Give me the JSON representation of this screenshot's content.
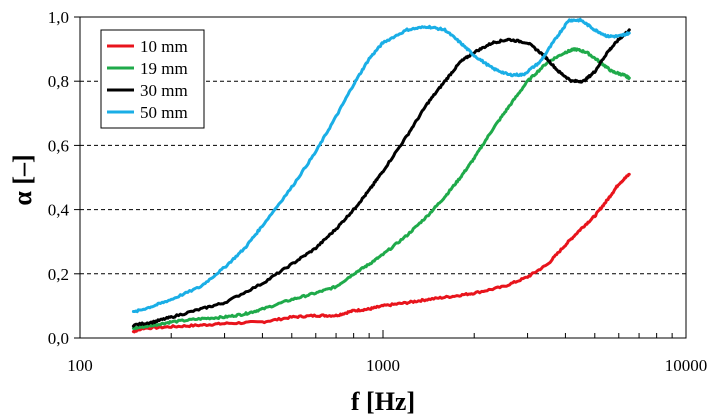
{
  "chart_data": {
    "type": "line",
    "title": "",
    "xlabel": "f [Hz]",
    "ylabel": "α [–]",
    "xscale": "log",
    "xlim": [
      100,
      10000
    ],
    "ylim": [
      0.0,
      1.0
    ],
    "x_ticks": [
      100,
      1000,
      10000
    ],
    "x_tick_labels": [
      "100",
      "1000",
      "10000"
    ],
    "y_ticks": [
      0.0,
      0.2,
      0.4,
      0.6,
      0.8,
      1.0
    ],
    "y_tick_labels": [
      "0,0",
      "0,2",
      "0,4",
      "0,6",
      "0,8",
      "1,0"
    ],
    "grid": "horizontal dashed",
    "legend_position": "top-left",
    "series": [
      {
        "name": "10 mm",
        "color": "#e8141c",
        "points": [
          [
            150,
            0.02
          ],
          [
            160,
            0.03
          ],
          [
            200,
            0.035
          ],
          [
            250,
            0.04
          ],
          [
            300,
            0.045
          ],
          [
            400,
            0.05
          ],
          [
            500,
            0.065
          ],
          [
            600,
            0.07
          ],
          [
            700,
            0.07
          ],
          [
            800,
            0.085
          ],
          [
            900,
            0.09
          ],
          [
            1000,
            0.1
          ],
          [
            1200,
            0.11
          ],
          [
            1400,
            0.12
          ],
          [
            1700,
            0.13
          ],
          [
            2000,
            0.14
          ],
          [
            2500,
            0.16
          ],
          [
            3000,
            0.19
          ],
          [
            3500,
            0.23
          ],
          [
            4000,
            0.29
          ],
          [
            4500,
            0.34
          ],
          [
            5000,
            0.38
          ],
          [
            5500,
            0.43
          ],
          [
            6000,
            0.48
          ],
          [
            6500,
            0.51
          ]
        ]
      },
      {
        "name": "19 mm",
        "color": "#1faa4a",
        "points": [
          [
            150,
            0.03
          ],
          [
            175,
            0.04
          ],
          [
            200,
            0.05
          ],
          [
            250,
            0.06
          ],
          [
            300,
            0.065
          ],
          [
            350,
            0.075
          ],
          [
            400,
            0.09
          ],
          [
            500,
            0.12
          ],
          [
            600,
            0.14
          ],
          [
            700,
            0.16
          ],
          [
            800,
            0.2
          ],
          [
            900,
            0.23
          ],
          [
            1000,
            0.26
          ],
          [
            1200,
            0.32
          ],
          [
            1400,
            0.38
          ],
          [
            1600,
            0.44
          ],
          [
            1800,
            0.5
          ],
          [
            2000,
            0.56
          ],
          [
            2300,
            0.65
          ],
          [
            2600,
            0.72
          ],
          [
            3000,
            0.8
          ],
          [
            3500,
            0.86
          ],
          [
            4000,
            0.89
          ],
          [
            4300,
            0.9
          ],
          [
            4700,
            0.89
          ],
          [
            5200,
            0.86
          ],
          [
            5700,
            0.83
          ],
          [
            6200,
            0.82
          ],
          [
            6500,
            0.81
          ]
        ]
      },
      {
        "name": "30 mm",
        "color": "#000000",
        "points": [
          [
            150,
            0.04
          ],
          [
            175,
            0.05
          ],
          [
            200,
            0.065
          ],
          [
            250,
            0.09
          ],
          [
            300,
            0.11
          ],
          [
            400,
            0.17
          ],
          [
            500,
            0.23
          ],
          [
            600,
            0.28
          ],
          [
            700,
            0.34
          ],
          [
            800,
            0.4
          ],
          [
            900,
            0.46
          ],
          [
            1000,
            0.52
          ],
          [
            1200,
            0.63
          ],
          [
            1400,
            0.73
          ],
          [
            1600,
            0.8
          ],
          [
            1800,
            0.86
          ],
          [
            2000,
            0.89
          ],
          [
            2300,
            0.92
          ],
          [
            2600,
            0.93
          ],
          [
            3000,
            0.92
          ],
          [
            3400,
            0.88
          ],
          [
            3800,
            0.83
          ],
          [
            4200,
            0.8
          ],
          [
            4600,
            0.8
          ],
          [
            5000,
            0.83
          ],
          [
            5500,
            0.89
          ],
          [
            6000,
            0.93
          ],
          [
            6500,
            0.96
          ]
        ]
      },
      {
        "name": "50 mm",
        "color": "#1aaee6",
        "points": [
          [
            150,
            0.08
          ],
          [
            175,
            0.1
          ],
          [
            200,
            0.12
          ],
          [
            250,
            0.16
          ],
          [
            300,
            0.22
          ],
          [
            350,
            0.28
          ],
          [
            400,
            0.35
          ],
          [
            500,
            0.47
          ],
          [
            600,
            0.58
          ],
          [
            700,
            0.69
          ],
          [
            800,
            0.79
          ],
          [
            900,
            0.87
          ],
          [
            1000,
            0.92
          ],
          [
            1200,
            0.96
          ],
          [
            1400,
            0.97
          ],
          [
            1600,
            0.96
          ],
          [
            1800,
            0.92
          ],
          [
            2000,
            0.88
          ],
          [
            2300,
            0.84
          ],
          [
            2600,
            0.82
          ],
          [
            2900,
            0.82
          ],
          [
            3300,
            0.86
          ],
          [
            3700,
            0.93
          ],
          [
            4100,
            0.99
          ],
          [
            4500,
            0.99
          ],
          [
            5000,
            0.96
          ],
          [
            5500,
            0.94
          ],
          [
            6000,
            0.94
          ],
          [
            6500,
            0.95
          ]
        ]
      }
    ]
  }
}
